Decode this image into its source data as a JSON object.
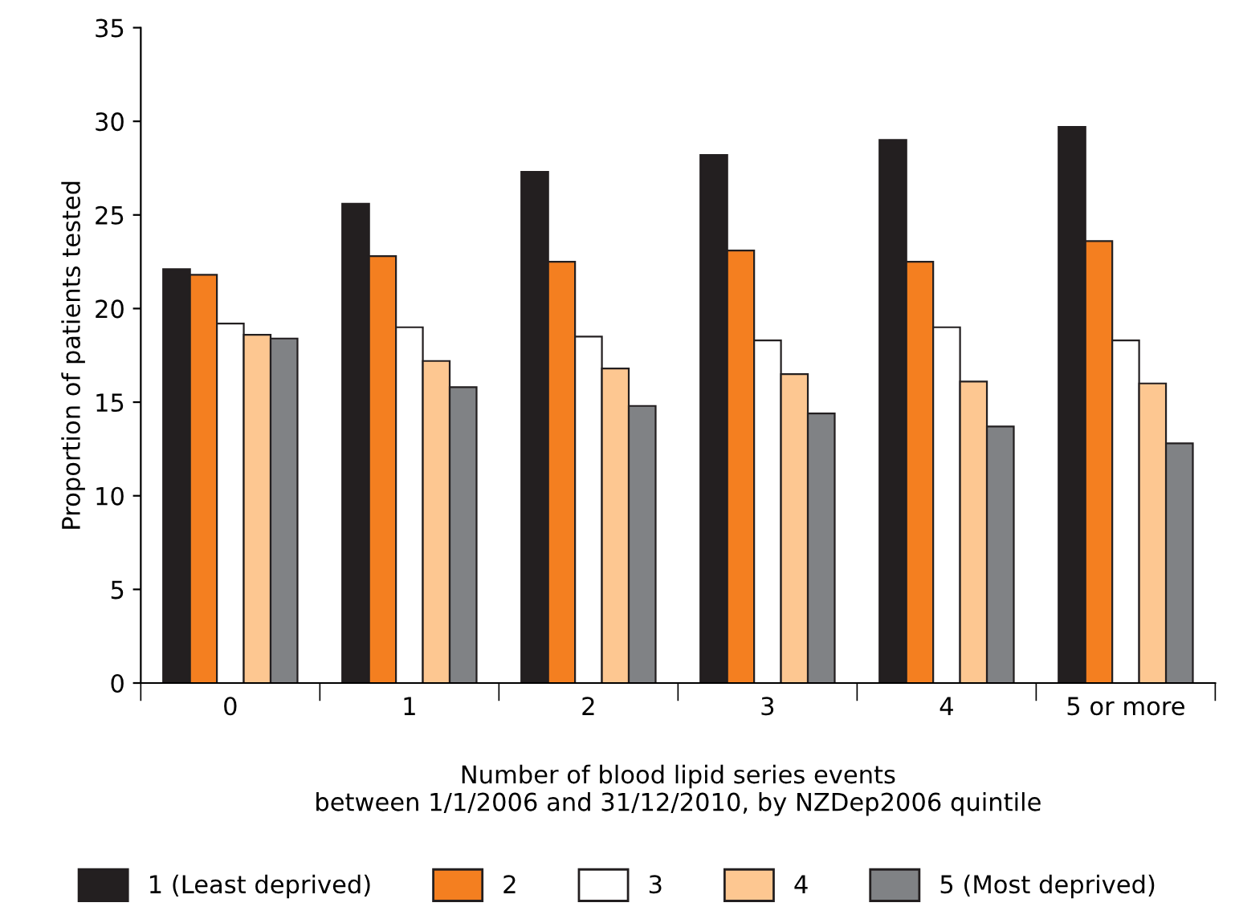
{
  "chart_data": {
    "type": "bar",
    "xlabel": "Number of blood lipid series events\nbetween 1/1/2006 and 31/12/2010, by NZDep2006 quintile",
    "ylabel": "Proportion of patients tested",
    "categories": [
      "0",
      "1",
      "2",
      "3",
      "4",
      "5 or more"
    ],
    "series": [
      {
        "name": "1 (Least deprived)",
        "color": "#231f20",
        "values": [
          22.1,
          25.6,
          27.3,
          28.2,
          29.0,
          29.7
        ]
      },
      {
        "name": "2",
        "color": "#f47f20",
        "values": [
          21.8,
          22.8,
          22.5,
          23.1,
          22.5,
          23.6
        ]
      },
      {
        "name": "3",
        "color": "#ffffff",
        "values": [
          19.2,
          19.0,
          18.5,
          18.3,
          19.0,
          18.3
        ]
      },
      {
        "name": "4",
        "color": "#fdc791",
        "values": [
          18.6,
          17.2,
          16.8,
          16.5,
          16.1,
          16.0
        ]
      },
      {
        "name": "5 (Most deprived)",
        "color": "#808285",
        "values": [
          18.4,
          15.8,
          14.8,
          14.4,
          13.7,
          12.8
        ]
      }
    ],
    "ylim": [
      0,
      35
    ],
    "yticks": [
      0,
      5,
      10,
      15,
      20,
      25,
      30,
      35
    ],
    "grid": false,
    "legend": "bottom"
  }
}
